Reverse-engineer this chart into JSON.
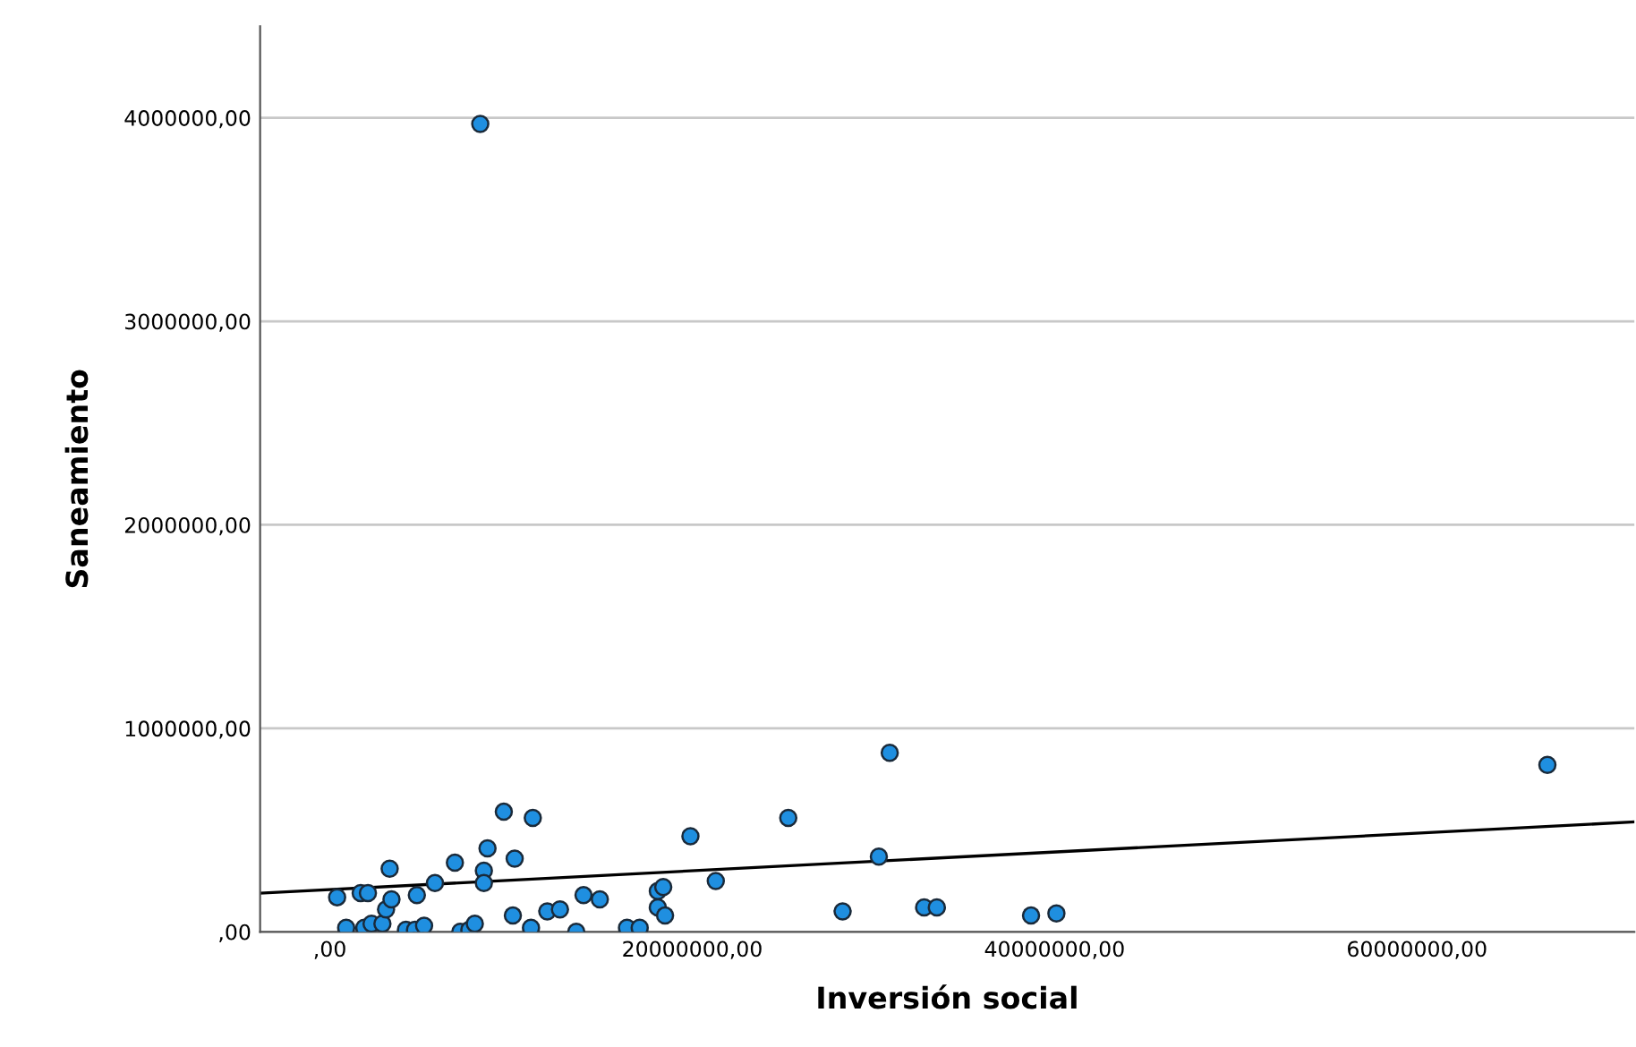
{
  "chart_data": {
    "type": "scatter",
    "xlabel": "Inversión social",
    "ylabel": "Saneamiento",
    "xlim": [
      -3850000,
      72000000
    ],
    "ylim": [
      0,
      4450000
    ],
    "xticks": [
      {
        "value": 0,
        "label": ",00"
      },
      {
        "value": 20000000,
        "label": "20000000,00"
      },
      {
        "value": 40000000,
        "label": "40000000,00"
      },
      {
        "value": 60000000,
        "label": "60000000,00"
      }
    ],
    "yticks": [
      {
        "value": 0,
        "label": ",00"
      },
      {
        "value": 1000000,
        "label": "1000000,00"
      },
      {
        "value": 2000000,
        "label": "2000000,00"
      },
      {
        "value": 3000000,
        "label": "3000000,00"
      },
      {
        "value": 4000000,
        "label": "4000000,00"
      }
    ],
    "grid": "y",
    "marker": "circle",
    "series": [
      {
        "color": "#1f8fe0",
        "x": [
          400000,
          900000,
          1700000,
          2100000,
          1900000,
          2300000,
          2900000,
          3100000,
          3400000,
          3300000,
          4200000,
          4700000,
          5200000,
          4800000,
          5800000,
          6900000,
          7200000,
          7700000,
          8000000,
          8500000,
          8500000,
          8700000,
          9600000,
          10200000,
          10100000,
          11100000,
          11200000,
          12000000,
          12700000,
          13600000,
          14000000,
          14900000,
          16400000,
          17100000,
          18100000,
          18400000,
          18100000,
          18500000,
          19900000,
          21300000,
          25300000,
          30900000,
          30300000,
          28300000,
          32800000,
          33500000,
          38700000,
          40100000,
          67200000,
          8300000
        ],
        "values": [
          170000,
          20000,
          190000,
          190000,
          20000,
          40000,
          40000,
          110000,
          160000,
          310000,
          10000,
          10000,
          30000,
          180000,
          240000,
          340000,
          0,
          10000,
          40000,
          300000,
          240000,
          410000,
          590000,
          360000,
          80000,
          20000,
          560000,
          100000,
          110000,
          0,
          180000,
          160000,
          20000,
          20000,
          200000,
          220000,
          120000,
          80000,
          470000,
          250000,
          560000,
          880000,
          370000,
          100000,
          120000,
          120000,
          80000,
          90000,
          820000,
          3970000
        ]
      },
      {
        "type": "line",
        "color": "#000000",
        "marker": "none",
        "x": [
          -3850000,
          72000000
        ],
        "values": [
          190000,
          540000
        ]
      }
    ]
  }
}
